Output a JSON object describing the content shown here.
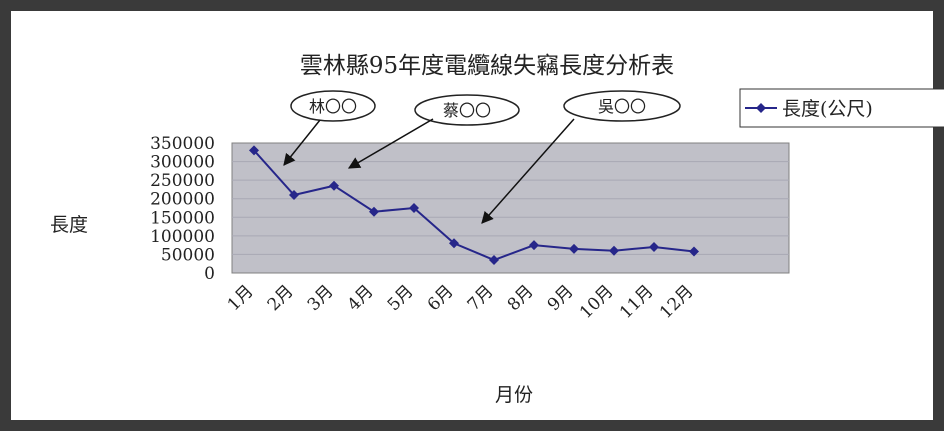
{
  "chart_data": {
    "type": "line",
    "title": "雲林縣95年度電纜線失竊長度分析表",
    "xlabel": "月份",
    "ylabel": "長度",
    "categories": [
      "1月",
      "2月",
      "3月",
      "4月",
      "5月",
      "6月",
      "7月",
      "8月",
      "9月",
      "10月",
      "11月",
      "12月"
    ],
    "series": [
      {
        "name": "長度(公尺)",
        "values": [
          330000,
          210000,
          235000,
          165000,
          175000,
          80000,
          35000,
          75000,
          65000,
          60000,
          70000,
          58000
        ]
      }
    ],
    "ylim": [
      0,
      350000
    ],
    "yticks": [
      "350000",
      "300000",
      "250000",
      "200000",
      "150000",
      "100000",
      "50000",
      "0"
    ],
    "grid": true,
    "legend_position": "top-right",
    "plot_background": "#c0c0c8",
    "line_color": "#26268a",
    "annotations": [
      {
        "label": "林〇〇",
        "target_month": "2月"
      },
      {
        "label": "蔡〇〇",
        "target_month": "3月"
      },
      {
        "label": "吳〇〇",
        "target_month": "6月"
      }
    ]
  }
}
